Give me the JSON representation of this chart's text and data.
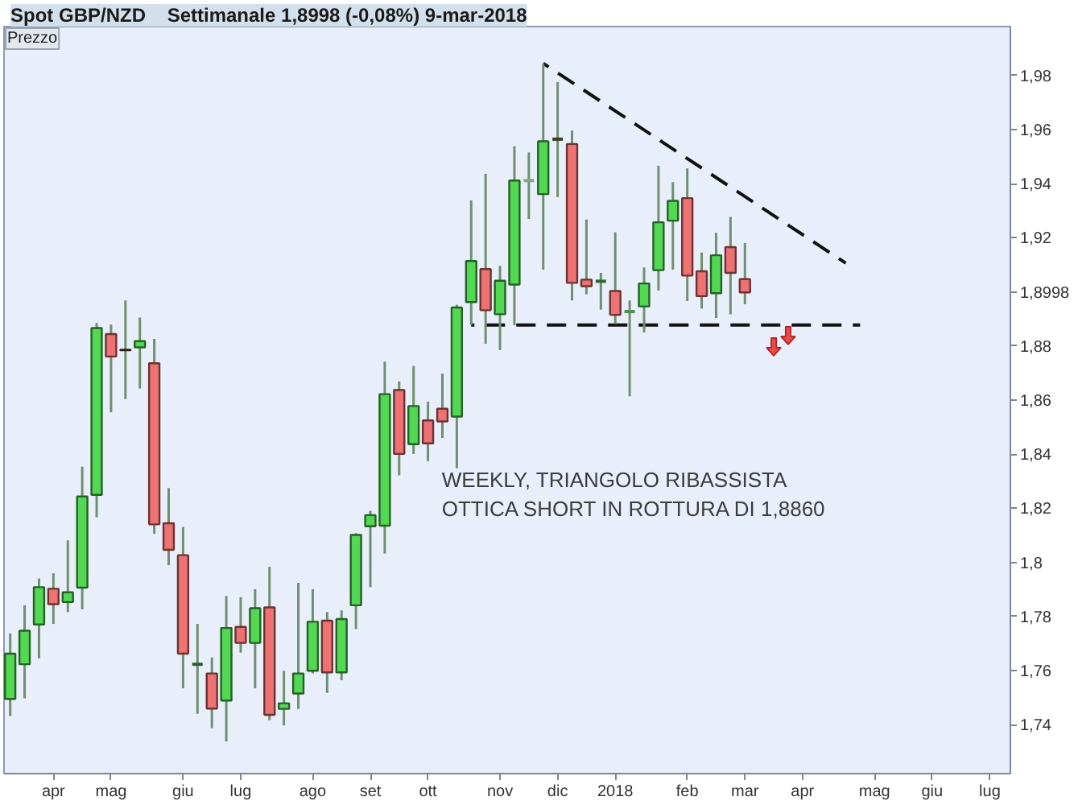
{
  "chart_data": {
    "type": "candlestick",
    "title": "Spot GBP/NZD",
    "subtitle": "Settimanale 1,8998 (-0,08%) 9-mar-2018",
    "x": [
      "2017-03-13",
      "2017-03-20",
      "2017-03-27",
      "2017-04-03",
      "2017-04-10",
      "2017-04-17",
      "2017-04-24",
      "2017-05-01",
      "2017-05-08",
      "2017-05-15",
      "2017-05-22",
      "2017-05-29",
      "2017-06-05",
      "2017-06-12",
      "2017-06-19",
      "2017-06-26",
      "2017-07-03",
      "2017-07-10",
      "2017-07-17",
      "2017-07-24",
      "2017-07-31",
      "2017-08-07",
      "2017-08-14",
      "2017-08-21",
      "2017-08-28",
      "2017-09-04",
      "2017-09-11",
      "2017-09-18",
      "2017-09-25",
      "2017-10-02",
      "2017-10-09",
      "2017-10-16",
      "2017-10-23",
      "2017-10-30",
      "2017-11-06",
      "2017-11-13",
      "2017-11-20",
      "2017-11-27",
      "2017-12-04",
      "2017-12-11",
      "2017-12-18",
      "2017-12-25",
      "2018-01-01",
      "2018-01-08",
      "2018-01-15",
      "2018-01-22",
      "2018-01-29",
      "2018-02-05",
      "2018-02-12",
      "2018-02-19",
      "2018-02-26",
      "2018-03-05"
    ],
    "ohlc": [
      [
        1.7496,
        1.7738,
        1.7433,
        1.7663
      ],
      [
        1.7624,
        1.7842,
        1.7498,
        1.7748
      ],
      [
        1.7771,
        1.7941,
        1.7646,
        1.7909
      ],
      [
        1.7903,
        1.796,
        1.7773,
        1.7846
      ],
      [
        1.7854,
        1.8082,
        1.7817,
        1.789
      ],
      [
        1.7907,
        1.8354,
        1.7827,
        1.8244
      ],
      [
        1.825,
        1.8885,
        1.8167,
        1.8866
      ],
      [
        1.8844,
        1.8879,
        1.8555,
        1.8761
      ],
      [
        1.8786,
        1.8968,
        1.8604,
        1.8784
      ],
      [
        1.8795,
        1.8905,
        1.8643,
        1.8818
      ],
      [
        1.8736,
        1.8826,
        1.8106,
        1.8141
      ],
      [
        1.8145,
        1.8275,
        1.799,
        1.8047
      ],
      [
        1.8027,
        1.8131,
        1.7535,
        1.7663
      ],
      [
        1.7624,
        1.7773,
        1.7441,
        1.7624
      ],
      [
        1.759,
        1.7649,
        1.7388,
        1.746
      ],
      [
        1.749,
        1.7876,
        1.7339,
        1.7758
      ],
      [
        1.7762,
        1.7872,
        1.7667,
        1.7703
      ],
      [
        1.7703,
        1.7901,
        1.7535,
        1.7831
      ],
      [
        1.7834,
        1.7984,
        1.7417,
        1.7437
      ],
      [
        1.7459,
        1.76,
        1.7398,
        1.748
      ],
      [
        1.7516,
        1.7925,
        1.7459,
        1.759
      ],
      [
        1.76,
        1.7901,
        1.759,
        1.7781
      ],
      [
        1.7785,
        1.7817,
        1.7518,
        1.7594
      ],
      [
        1.7594,
        1.7823,
        1.7565,
        1.7791
      ],
      [
        1.7842,
        1.8108,
        1.7754,
        1.8102
      ],
      [
        1.8134,
        1.8191,
        1.7909,
        1.8175
      ],
      [
        1.8136,
        1.8742,
        1.8033,
        1.8622
      ],
      [
        1.8637,
        1.8669,
        1.8322,
        1.8401
      ],
      [
        1.8437,
        1.8726,
        1.8401,
        1.8578
      ],
      [
        1.8525,
        1.8594,
        1.8374,
        1.844
      ],
      [
        1.8568,
        1.8698,
        1.846,
        1.8521
      ],
      [
        1.8539,
        1.8952,
        1.8348,
        1.8942
      ],
      [
        1.8962,
        1.9338,
        1.8877,
        1.9114
      ],
      [
        1.9084,
        1.9436,
        1.8808,
        1.8932
      ],
      [
        1.8917,
        1.9096,
        1.8785,
        1.9041
      ],
      [
        1.9027,
        1.9538,
        1.8877,
        1.9411
      ],
      [
        1.9411,
        1.9515,
        1.9269,
        1.9411
      ],
      [
        1.9361,
        1.9844,
        1.9082,
        1.9556
      ],
      [
        1.9564,
        1.9775,
        1.935,
        1.9564
      ],
      [
        1.9546,
        1.9596,
        1.8968,
        1.9033
      ],
      [
        1.9045,
        1.9267,
        1.8991,
        1.9021
      ],
      [
        1.9039,
        1.907,
        1.8934,
        1.9039
      ],
      [
        1.9003,
        1.922,
        1.8881,
        1.8915
      ],
      [
        1.8927,
        1.8968,
        1.8614,
        1.8927
      ],
      [
        1.8946,
        1.909,
        1.885,
        1.9031
      ],
      [
        1.908,
        1.9466,
        1.9005,
        1.9257
      ],
      [
        1.9263,
        1.9405,
        1.9082,
        1.9336
      ],
      [
        1.9346,
        1.9456,
        1.8966,
        1.906
      ],
      [
        1.9076,
        1.9145,
        1.8938,
        1.8984
      ],
      [
        1.8995,
        1.9218,
        1.8903,
        1.9135
      ],
      [
        1.9165,
        1.9277,
        1.8917,
        1.907
      ],
      [
        1.9047,
        1.918,
        1.8954,
        1.8998
      ]
    ],
    "colors": [
      "#52d852",
      "#52d852",
      "#52d852",
      "#ee7272",
      "#52d852",
      "#52d852",
      "#52d852",
      "#ee7272",
      "#6b4a2a",
      "#52d852",
      "#ee7272",
      "#ee7272",
      "#ee7272",
      "#2e5e2e",
      "#ee7272",
      "#52d852",
      "#ee7272",
      "#52d852",
      "#ee7272",
      "#52d852",
      "#52d852",
      "#52d852",
      "#ee7272",
      "#52d852",
      "#52d852",
      "#52d852",
      "#52d852",
      "#ee7272",
      "#52d852",
      "#ee7272",
      "#ee7272",
      "#52d852",
      "#52d852",
      "#ee7272",
      "#52d852",
      "#52d852",
      "#7faa7f",
      "#52d852",
      "#3b3b22",
      "#ee7272",
      "#ee7272",
      "#2e6b2e",
      "#ee7272",
      "#4f8f4f",
      "#52d852",
      "#52d852",
      "#52d852",
      "#ee7272",
      "#ee7272",
      "#52d852",
      "#ee7272",
      "#ee7272"
    ],
    "series": [
      {
        "type": "line",
        "x": [
          "2017-11-27",
          "2018-04-23"
        ],
        "values": [
          1.9844,
          1.9106
        ],
        "color": "#111111"
      },
      {
        "type": "line",
        "x": [
          "2017-10-23",
          "2018-04-30"
        ],
        "values": [
          1.8877,
          1.8877
        ],
        "color": "#111111"
      }
    ],
    "line_style": "dashed",
    "xlim": [
      "2017-03-10",
      "2018-07-12"
    ],
    "ylim": [
      1.722,
      1.998
    ],
    "xticks": [
      {
        "value": "2017-04-03",
        "label": "apr"
      },
      {
        "value": "2017-05-01",
        "label": "mag"
      },
      {
        "value": "2017-06-05",
        "label": "giu"
      },
      {
        "value": "2017-07-03",
        "label": "lug"
      },
      {
        "value": "2017-08-07",
        "label": "ago"
      },
      {
        "value": "2017-09-04",
        "label": "set"
      },
      {
        "value": "2017-10-02",
        "label": "ott"
      },
      {
        "value": "2017-11-06",
        "label": "nov"
      },
      {
        "value": "2017-12-04",
        "label": "dic"
      },
      {
        "value": "2018-01-01",
        "label": "2018"
      },
      {
        "value": "2018-02-05",
        "label": "feb"
      },
      {
        "value": "2018-03-05",
        "label": "mar"
      },
      {
        "value": "2018-04-02",
        "label": "apr"
      },
      {
        "value": "2018-05-07",
        "label": "mag"
      },
      {
        "value": "2018-06-04",
        "label": "giu"
      },
      {
        "value": "2018-07-02",
        "label": "lug"
      }
    ],
    "yticks": [
      {
        "value": 1.74,
        "label": "1,74"
      },
      {
        "value": 1.76,
        "label": "1,76"
      },
      {
        "value": 1.78,
        "label": "1,78"
      },
      {
        "value": 1.8,
        "label": "1,8"
      },
      {
        "value": 1.82,
        "label": "1,82"
      },
      {
        "value": 1.84,
        "label": "1,84"
      },
      {
        "value": 1.86,
        "label": "1,86"
      },
      {
        "value": 1.88,
        "label": "1,88"
      },
      {
        "value": 1.8998,
        "label": "1,8998"
      },
      {
        "value": 1.92,
        "label": "1,92"
      },
      {
        "value": 1.94,
        "label": "1,94"
      },
      {
        "value": 1.96,
        "label": "1,96"
      },
      {
        "value": 1.98,
        "label": "1,98"
      }
    ],
    "annotations": [
      "Prezzo",
      "WEEKLY, TRIANGOLO RIBASSISTA\nOTTICA SHORT IN ROTTURA DI 1,8860"
    ]
  }
}
